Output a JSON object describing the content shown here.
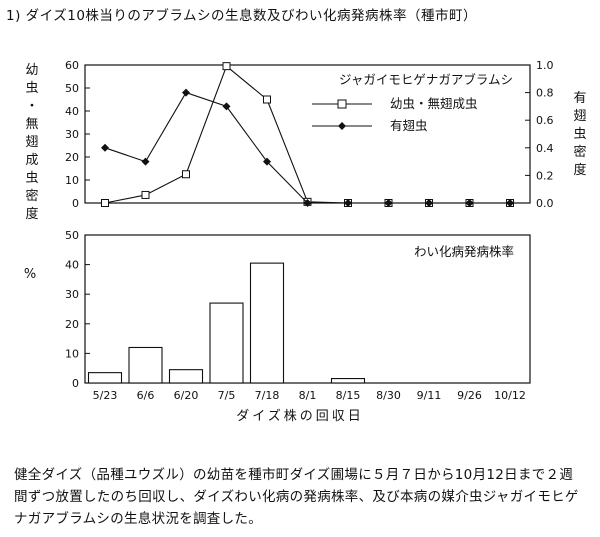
{
  "title": "1) ダイズ10株当りのアブラムシの生息数及びわい化病発病株率（種市町）",
  "note": "健全ダイズ（品種ユウズル）の幼苗を種市町ダイズ圃場に５月７日から10月12日まで２週間ずつ放置したのち回収し、ダイズわい化病の発病株率、及び本病の媒介虫ジャガイモヒゲナガアブラムシの生息状況を調査した。",
  "chart_data": [
    {
      "type": "line",
      "title": "ジャガイモヒゲナガアブラムシ",
      "ylabel_left": "幼虫・無翅成虫密度",
      "ylabel_right": "有翅虫密度",
      "ylim_left": [
        0,
        60
      ],
      "yticks_left": [
        "0",
        "10",
        "20",
        "30",
        "40",
        "50",
        "60"
      ],
      "ylim_right": [
        0,
        1.0
      ],
      "yticks_right": [
        "0.0",
        "0.2",
        "0.4",
        "0.6",
        "0.8",
        "1.0"
      ],
      "grid": false,
      "legend_position": "top-right",
      "series": [
        {
          "name": "幼虫・無翅成虫",
          "axis": "left",
          "marker": "open-square",
          "values": [
            0,
            3.5,
            12.5,
            59.5,
            45,
            0.5,
            0,
            0,
            0,
            0,
            0
          ]
        },
        {
          "name": "有翅虫",
          "axis": "right",
          "marker": "filled-diamond",
          "values": [
            0.4,
            0.3,
            0.8,
            0.7,
            0.3,
            0,
            0,
            0,
            0,
            0,
            0
          ]
        }
      ]
    },
    {
      "type": "bar",
      "title": "わい化病発病株率",
      "ylabel": "%",
      "xlabel": "ダイズ株の回収日",
      "ylim": [
        0,
        50
      ],
      "yticks": [
        "0",
        "10",
        "20",
        "30",
        "40",
        "50"
      ],
      "grid": false,
      "categories": [
        "5/23",
        "6/6",
        "6/20",
        "7/5",
        "7/18",
        "8/1",
        "8/15",
        "8/30",
        "9/11",
        "9/26",
        "10/12"
      ],
      "values": [
        3.5,
        12,
        4.5,
        27,
        40.5,
        0,
        1.5,
        0,
        0,
        0,
        0
      ]
    }
  ]
}
